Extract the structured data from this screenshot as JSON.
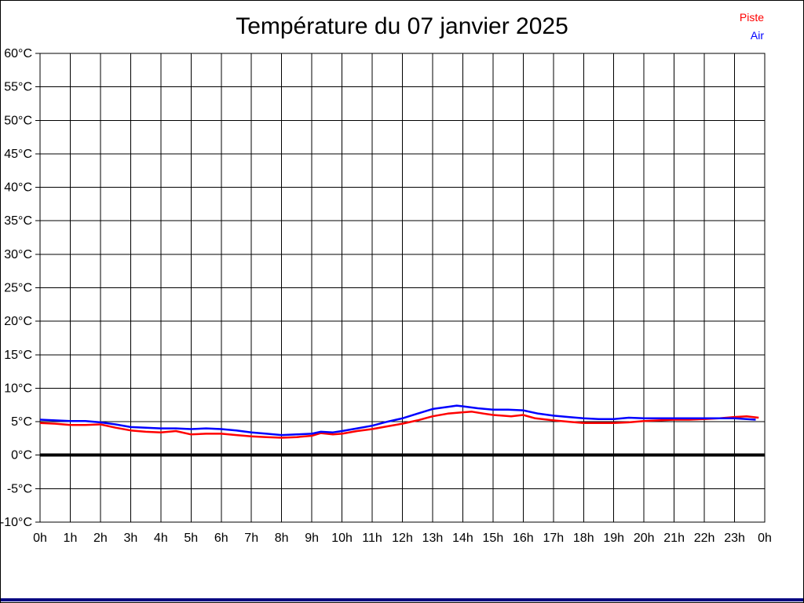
{
  "page": {
    "title": "Température du 07 janvier 2025"
  },
  "legend": {
    "items": [
      {
        "label": "Piste",
        "color": "#ff0000"
      },
      {
        "label": "Air",
        "color": "#0000ff"
      }
    ]
  },
  "colors": {
    "grid": "#000000",
    "zero_line": "#000000",
    "bottom_bar": "#000080",
    "piste_line": "#ff0000",
    "air_line": "#0000ff"
  },
  "chart_data": {
    "type": "line",
    "title": "Température du 07 janvier 2025",
    "xlabel": "",
    "ylabel": "",
    "xlim": [
      0,
      24
    ],
    "ylim": [
      -10,
      60
    ],
    "grid": "both",
    "legend_position": "top-right",
    "zero_line_value": 0,
    "x_tick_labels": [
      "0h",
      "1h",
      "2h",
      "3h",
      "4h",
      "5h",
      "6h",
      "7h",
      "8h",
      "9h",
      "10h",
      "11h",
      "12h",
      "13h",
      "14h",
      "15h",
      "16h",
      "17h",
      "18h",
      "19h",
      "20h",
      "21h",
      "22h",
      "23h",
      "0h"
    ],
    "y_tick_labels": [
      "60°C",
      "55°C",
      "50°C",
      "45°C",
      "40°C",
      "35°C",
      "30°C",
      "25°C",
      "20°C",
      "15°C",
      "10°C",
      "5°C",
      "0°C",
      "-5°C",
      "-10°C"
    ],
    "series": [
      {
        "name": "Piste",
        "color": "#ff0000",
        "points": [
          [
            0,
            4.8
          ],
          [
            0.5,
            4.7
          ],
          [
            1,
            4.5
          ],
          [
            1.5,
            4.5
          ],
          [
            2,
            4.6
          ],
          [
            2.5,
            4.1
          ],
          [
            3,
            3.7
          ],
          [
            3.5,
            3.5
          ],
          [
            4,
            3.4
          ],
          [
            4.5,
            3.6
          ],
          [
            5,
            3.1
          ],
          [
            5.5,
            3.2
          ],
          [
            6,
            3.2
          ],
          [
            6.5,
            3.0
          ],
          [
            7,
            2.8
          ],
          [
            7.5,
            2.7
          ],
          [
            8,
            2.6
          ],
          [
            8.5,
            2.7
          ],
          [
            9,
            2.9
          ],
          [
            9.3,
            3.3
          ],
          [
            9.7,
            3.1
          ],
          [
            10,
            3.2
          ],
          [
            10.5,
            3.6
          ],
          [
            11,
            3.9
          ],
          [
            11.5,
            4.3
          ],
          [
            12,
            4.7
          ],
          [
            12.5,
            5.2
          ],
          [
            13,
            5.8
          ],
          [
            13.5,
            6.2
          ],
          [
            14,
            6.4
          ],
          [
            14.3,
            6.5
          ],
          [
            14.7,
            6.2
          ],
          [
            15,
            6.0
          ],
          [
            15.6,
            5.8
          ],
          [
            16,
            6.0
          ],
          [
            16.4,
            5.5
          ],
          [
            17,
            5.2
          ],
          [
            17.5,
            5.0
          ],
          [
            18,
            4.8
          ],
          [
            18.5,
            4.8
          ],
          [
            19,
            4.8
          ],
          [
            19.5,
            4.9
          ],
          [
            20,
            5.1
          ],
          [
            20.5,
            5.2
          ],
          [
            21,
            5.3
          ],
          [
            21.5,
            5.3
          ],
          [
            22,
            5.4
          ],
          [
            22.5,
            5.5
          ],
          [
            23,
            5.7
          ],
          [
            23.4,
            5.8
          ],
          [
            23.8,
            5.6
          ]
        ]
      },
      {
        "name": "Air",
        "color": "#0000ff",
        "points": [
          [
            0,
            5.3
          ],
          [
            0.5,
            5.2
          ],
          [
            1,
            5.1
          ],
          [
            1.5,
            5.1
          ],
          [
            2,
            4.9
          ],
          [
            2.5,
            4.6
          ],
          [
            3,
            4.2
          ],
          [
            3.5,
            4.1
          ],
          [
            4,
            4.0
          ],
          [
            4.5,
            4.0
          ],
          [
            5,
            3.9
          ],
          [
            5.5,
            4.0
          ],
          [
            6,
            3.9
          ],
          [
            6.5,
            3.7
          ],
          [
            7,
            3.4
          ],
          [
            7.5,
            3.2
          ],
          [
            8,
            3.0
          ],
          [
            8.5,
            3.1
          ],
          [
            9,
            3.2
          ],
          [
            9.3,
            3.5
          ],
          [
            9.7,
            3.4
          ],
          [
            10,
            3.6
          ],
          [
            10.5,
            4.0
          ],
          [
            11,
            4.4
          ],
          [
            11.5,
            5.0
          ],
          [
            12,
            5.5
          ],
          [
            12.5,
            6.2
          ],
          [
            13,
            6.9
          ],
          [
            13.5,
            7.2
          ],
          [
            13.8,
            7.4
          ],
          [
            14,
            7.3
          ],
          [
            14.5,
            7.0
          ],
          [
            15,
            6.8
          ],
          [
            15.5,
            6.8
          ],
          [
            16,
            6.7
          ],
          [
            16.5,
            6.2
          ],
          [
            17,
            5.9
          ],
          [
            17.5,
            5.7
          ],
          [
            18,
            5.5
          ],
          [
            18.5,
            5.4
          ],
          [
            19,
            5.4
          ],
          [
            19.5,
            5.6
          ],
          [
            20,
            5.5
          ],
          [
            21,
            5.5
          ],
          [
            22,
            5.5
          ],
          [
            23,
            5.5
          ],
          [
            23.4,
            5.4
          ],
          [
            23.7,
            5.3
          ]
        ]
      }
    ]
  }
}
